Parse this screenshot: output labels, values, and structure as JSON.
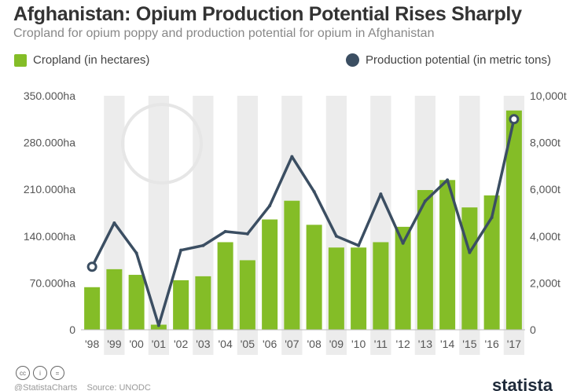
{
  "title": "Afghanistan: Opium Production Potential Rises Sharply",
  "subtitle": "Cropland for opium poppy and production potential for opium in Afghanistan",
  "legend": {
    "bars": "Cropland (in hectares)",
    "line": "Production potential (in metric tons)"
  },
  "footer": {
    "handle": "@StatistaCharts",
    "source": "Source: UNODC",
    "logo": "statista"
  },
  "colors": {
    "bar": "#84bd27",
    "line": "#3b4e62",
    "stripe": "#ececec"
  },
  "chart_data": {
    "type": "bar+line",
    "categories": [
      "'98",
      "'99",
      "'00",
      "'01",
      "'02",
      "'03",
      "'04",
      "'05",
      "'06",
      "'07",
      "'08",
      "'09",
      "'10",
      "'11",
      "'12",
      "'13",
      "'14",
      "'15",
      "'16",
      "'17"
    ],
    "series": [
      {
        "name": "Cropland (in hectares)",
        "type": "bar",
        "axis": "left",
        "values": [
          63674,
          90583,
          82171,
          7606,
          74100,
          80000,
          131000,
          104000,
          165000,
          193000,
          157000,
          123000,
          123000,
          131000,
          154000,
          209000,
          224000,
          183000,
          201000,
          328000
        ]
      },
      {
        "name": "Production potential (in metric tons)",
        "type": "line",
        "axis": "right",
        "values": [
          2693,
          4565,
          3276,
          185,
          3400,
          3600,
          4200,
          4100,
          5300,
          7400,
          5900,
          4000,
          3600,
          5800,
          3700,
          5500,
          6400,
          3300,
          4800,
          9000
        ]
      }
    ],
    "left_axis": {
      "range": [
        0,
        350000
      ],
      "ticks": [
        "0",
        "70.000ha",
        "140.000ha",
        "210.000ha",
        "280.000ha",
        "350.000ha"
      ]
    },
    "right_axis": {
      "range": [
        0,
        10000
      ],
      "ticks": [
        "0",
        "2,000t",
        "4,000t",
        "6,000t",
        "8,000t",
        "10,000t"
      ]
    },
    "grid": false,
    "legend_position": "top"
  }
}
